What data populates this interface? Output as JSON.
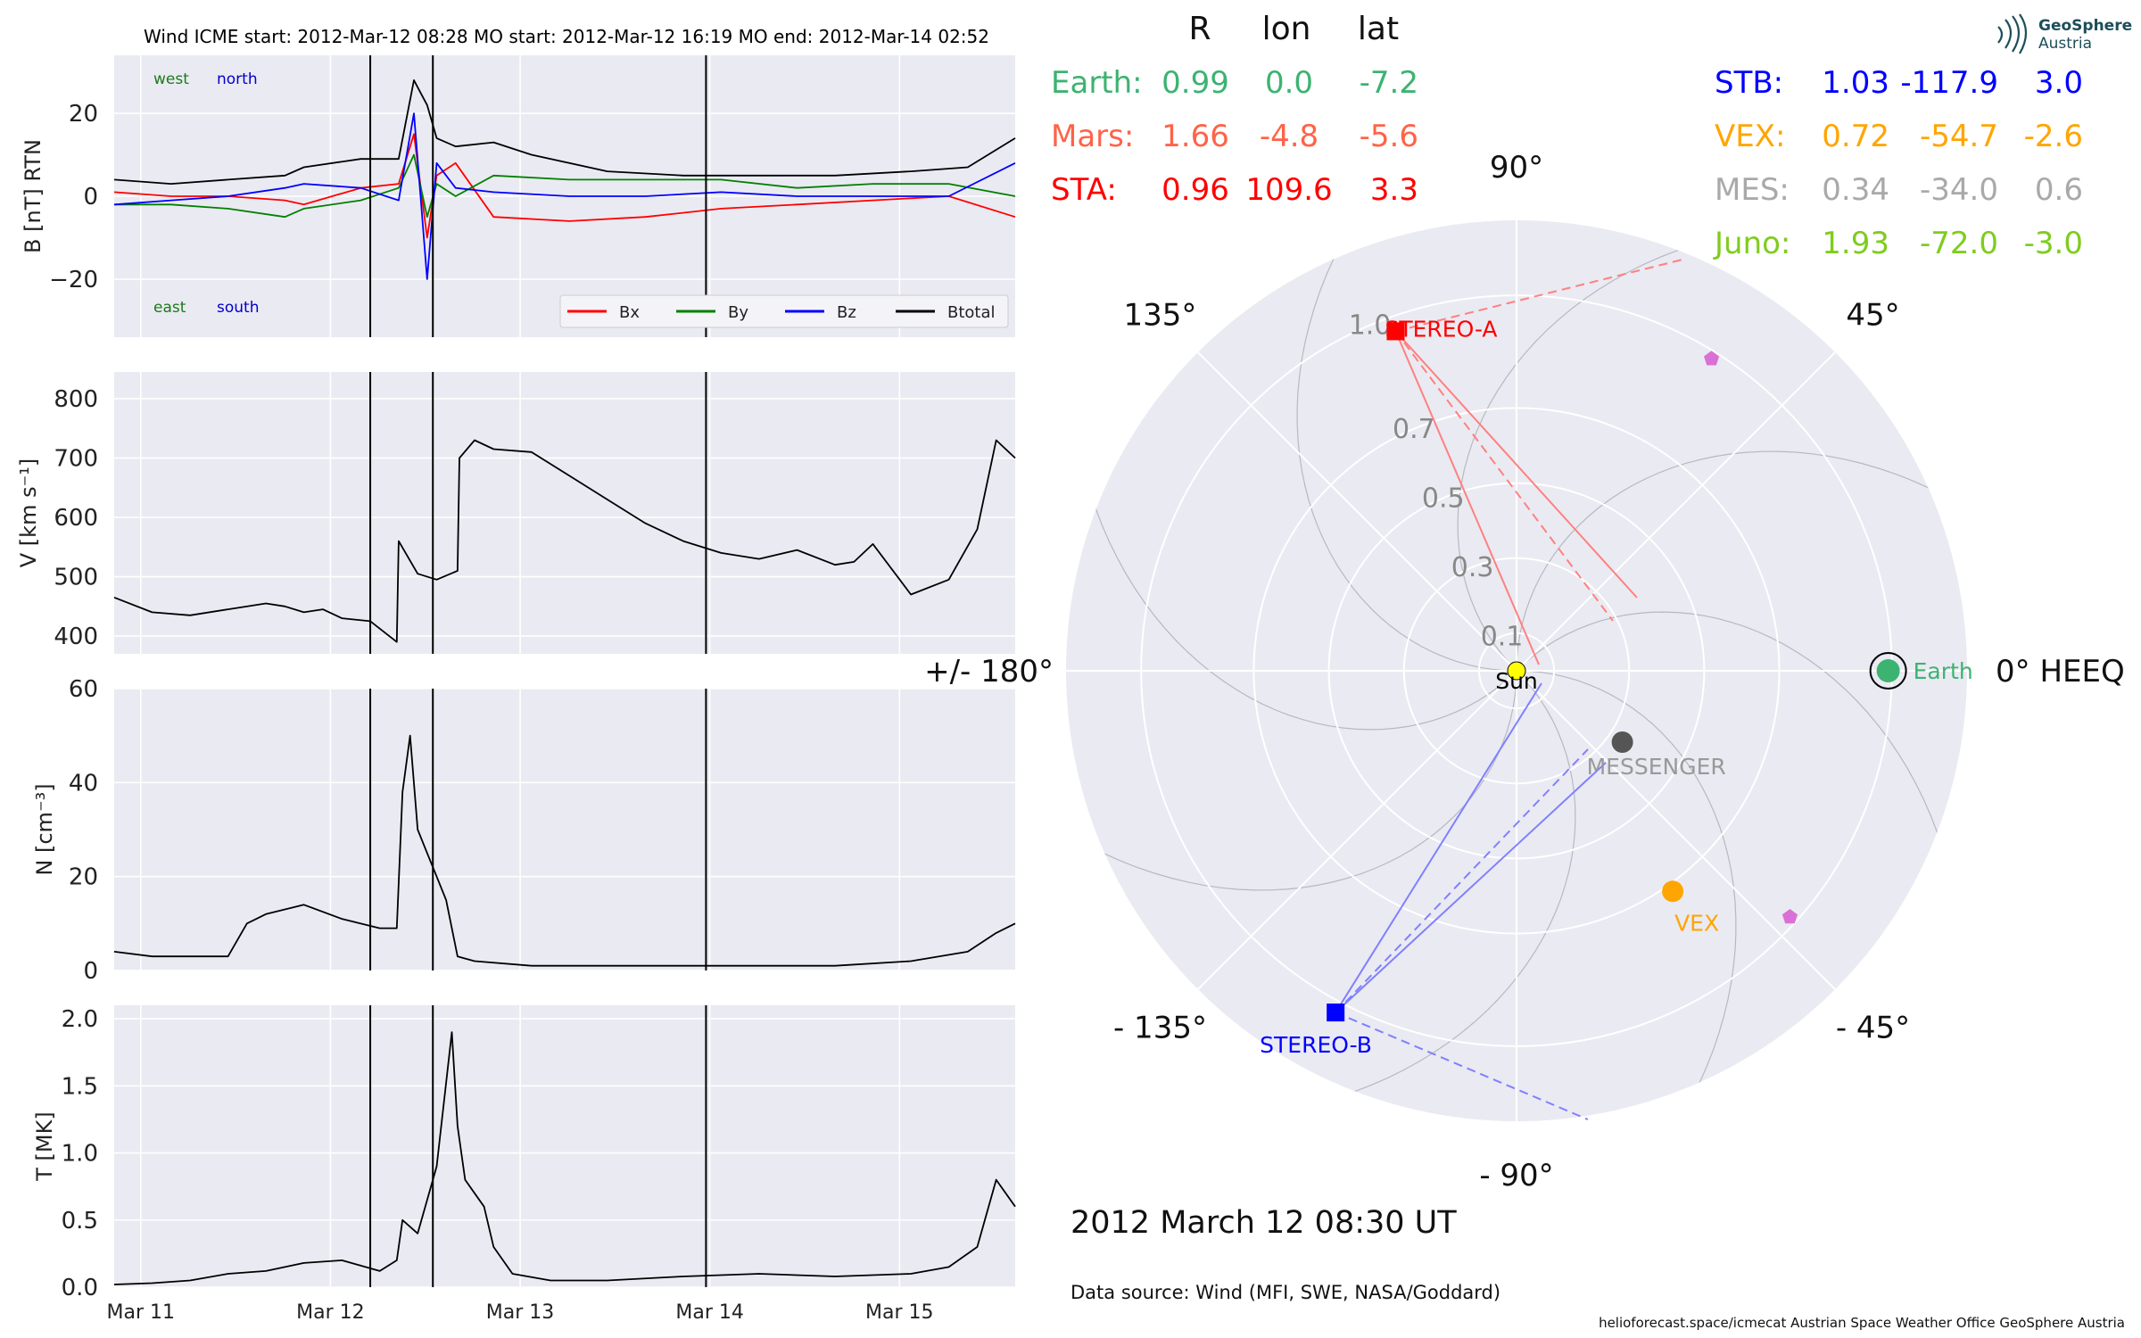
{
  "header": {
    "title": "Wind    ICME start: 2012-Mar-12 08:28   MO start: 2012-Mar-12 16:19   MO end: 2012-Mar-14 02:52"
  },
  "colors": {
    "bx": "#ff0000",
    "by": "#008000",
    "bz": "#0000ff",
    "btotal": "#000000",
    "earth": "#3cb371",
    "mars": "#ff6347",
    "sta": "#ff0000",
    "stb": "#0000ff",
    "vex": "#ffa500",
    "mes": "#a9a9a9",
    "juno": "#7fcc1e",
    "panel_bg": "#eaeaf2"
  },
  "chart_data": [
    {
      "type": "line",
      "ylabel": "B [nT] RTN",
      "ylim": [
        -34,
        34
      ],
      "yticks": [
        20,
        0,
        -20
      ],
      "yticklabels": [
        "20",
        "0",
        "−20"
      ],
      "annotations": [
        "west",
        "north",
        "east",
        "south"
      ],
      "legend": {
        "placement": "lower-right",
        "entries": [
          "Bx",
          "By",
          "Bz",
          "Btotal"
        ]
      },
      "series": [
        {
          "name": "Bx",
          "x": [
            0,
            0.3,
            0.6,
            0.9,
            1.0,
            1.3,
            1.5,
            1.58,
            1.65,
            1.7,
            1.8,
            2.0,
            2.4,
            2.8,
            3.2,
            3.6,
            4.0,
            4.4,
            4.75
          ],
          "y": [
            1,
            0,
            0,
            -1,
            -2,
            2,
            3,
            15,
            -10,
            5,
            8,
            -5,
            -6,
            -5,
            -3,
            -2,
            -1,
            0,
            -5
          ]
        },
        {
          "name": "By",
          "x": [
            0,
            0.3,
            0.6,
            0.9,
            1.0,
            1.3,
            1.5,
            1.58,
            1.65,
            1.7,
            1.8,
            2.0,
            2.4,
            2.8,
            3.2,
            3.6,
            4.0,
            4.4,
            4.75
          ],
          "y": [
            -2,
            -2,
            -3,
            -5,
            -3,
            -1,
            2,
            10,
            -5,
            3,
            0,
            5,
            4,
            4,
            4,
            2,
            3,
            3,
            0
          ]
        },
        {
          "name": "Bz",
          "x": [
            0,
            0.3,
            0.6,
            0.9,
            1.0,
            1.3,
            1.5,
            1.58,
            1.65,
            1.7,
            1.8,
            2.0,
            2.4,
            2.8,
            3.2,
            3.6,
            4.0,
            4.4,
            4.75
          ],
          "y": [
            -2,
            -1,
            0,
            2,
            3,
            2,
            -1,
            20,
            -20,
            8,
            2,
            1,
            0,
            0,
            1,
            0,
            0,
            0,
            8
          ]
        },
        {
          "name": "Btotal",
          "x": [
            0,
            0.3,
            0.6,
            0.9,
            1.0,
            1.3,
            1.5,
            1.58,
            1.65,
            1.7,
            1.8,
            2.0,
            2.2,
            2.6,
            3.0,
            3.4,
            3.8,
            4.2,
            4.5,
            4.75
          ],
          "y": [
            4,
            3,
            4,
            5,
            7,
            9,
            9,
            28,
            22,
            14,
            12,
            13,
            10,
            6,
            5,
            5,
            5,
            6,
            7,
            14
          ]
        }
      ]
    },
    {
      "type": "line",
      "ylabel": "V [km s⁻¹]",
      "ylim": [
        370,
        845
      ],
      "yticks": [
        400,
        500,
        600,
        700,
        800
      ],
      "series": [
        {
          "name": "V",
          "x": [
            0,
            0.2,
            0.4,
            0.6,
            0.8,
            0.9,
            1.0,
            1.1,
            1.2,
            1.35,
            1.49,
            1.5,
            1.6,
            1.7,
            1.81,
            1.82,
            1.9,
            2.0,
            2.2,
            2.4,
            2.6,
            2.8,
            3.0,
            3.2,
            3.4,
            3.6,
            3.8,
            3.9,
            4.0,
            4.2,
            4.4,
            4.55,
            4.65,
            4.75
          ],
          "y": [
            465,
            440,
            435,
            445,
            455,
            450,
            440,
            445,
            430,
            425,
            390,
            560,
            505,
            495,
            510,
            700,
            730,
            715,
            710,
            670,
            630,
            590,
            560,
            540,
            530,
            545,
            520,
            525,
            555,
            470,
            495,
            580,
            730,
            700
          ]
        }
      ]
    },
    {
      "type": "line",
      "ylabel": "N [cm⁻³]",
      "ylim": [
        0,
        60
      ],
      "yticks": [
        0,
        20,
        40,
        60
      ],
      "series": [
        {
          "name": "N",
          "x": [
            0,
            0.2,
            0.4,
            0.6,
            0.7,
            0.8,
            1.0,
            1.2,
            1.4,
            1.49,
            1.52,
            1.56,
            1.6,
            1.65,
            1.7,
            1.75,
            1.81,
            1.9,
            2.2,
            2.6,
            3.0,
            3.4,
            3.8,
            4.2,
            4.5,
            4.65,
            4.75
          ],
          "y": [
            4,
            3,
            3,
            3,
            10,
            12,
            14,
            11,
            9,
            9,
            38,
            50,
            30,
            25,
            20,
            15,
            3,
            2,
            1,
            1,
            1,
            1,
            1,
            2,
            4,
            8,
            10
          ]
        }
      ]
    },
    {
      "type": "line",
      "ylabel": "T [MK]",
      "ylim": [
        0,
        2.1
      ],
      "yticks": [
        0,
        0.5,
        1.0,
        1.5,
        2.0
      ],
      "yticklabels": [
        "0.0",
        "0.5",
        "1.0",
        "1.5",
        "2.0"
      ],
      "xticks": [
        0.14,
        1.14,
        2.14,
        3.14,
        4.14
      ],
      "xticklabels": [
        "Mar 11",
        "Mar 12",
        "Mar 13",
        "Mar 14",
        "Mar 15"
      ],
      "series": [
        {
          "name": "T",
          "x": [
            0,
            0.2,
            0.4,
            0.6,
            0.8,
            1.0,
            1.2,
            1.4,
            1.49,
            1.52,
            1.6,
            1.7,
            1.78,
            1.81,
            1.85,
            1.9,
            1.95,
            2.0,
            2.1,
            2.3,
            2.6,
            3.0,
            3.4,
            3.8,
            4.2,
            4.4,
            4.55,
            4.65,
            4.75
          ],
          "y": [
            0.02,
            0.03,
            0.05,
            0.1,
            0.12,
            0.18,
            0.2,
            0.12,
            0.2,
            0.5,
            0.4,
            0.9,
            1.9,
            1.2,
            0.8,
            0.7,
            0.6,
            0.3,
            0.1,
            0.05,
            0.05,
            0.08,
            0.1,
            0.08,
            0.1,
            0.15,
            0.3,
            0.8,
            0.6
          ]
        }
      ]
    },
    {
      "type": "scatter",
      "subtype": "polar",
      "radial_ticks": [
        "0.1",
        "0.3",
        "0.5",
        "0.7",
        "1.0"
      ],
      "radial_tick_values": [
        0.1,
        0.3,
        0.5,
        0.7,
        1.0
      ],
      "angle_labels": [
        {
          "angle": 0,
          "label": "0° HEEQ"
        },
        {
          "angle": 45,
          "label": "45°"
        },
        {
          "angle": 90,
          "label": "90°"
        },
        {
          "angle": 135,
          "label": "135°"
        },
        {
          "angle": 180,
          "label": "+/- 180°"
        },
        {
          "angle": -135,
          "label": "- 135°"
        },
        {
          "angle": -90,
          "label": "- 90°"
        },
        {
          "angle": -45,
          "label": "- 45°"
        }
      ],
      "bodies": [
        {
          "name": "Sun",
          "r": 0,
          "lon": 0,
          "marker": "circle",
          "color": "#ffff00"
        },
        {
          "name": "Earth",
          "r": 0.99,
          "lon": 0.0,
          "marker": "circle",
          "color": "#3cb371"
        },
        {
          "name": "STEREO-A",
          "r": 0.96,
          "lon": 109.6,
          "marker": "square",
          "color": "#ff0000"
        },
        {
          "name": "STEREO-B",
          "r": 1.03,
          "lon": -117.9,
          "marker": "square",
          "color": "#0000ff"
        },
        {
          "name": "VEX",
          "r": 0.72,
          "lon": -54.7,
          "marker": "circle",
          "color": "#ffa500"
        },
        {
          "name": "MESSENGER",
          "r": 0.34,
          "lon": -34.0,
          "marker": "circle",
          "color": "#555555"
        },
        {
          "name": "",
          "r": 0.98,
          "lon": 58.0,
          "marker": "pentagon",
          "color": "#da70d6"
        },
        {
          "name": "",
          "r": 0.98,
          "lon": -42.0,
          "marker": "pentagon",
          "color": "#da70d6"
        }
      ]
    }
  ],
  "positions_table": {
    "header": [
      "R",
      "lon",
      "lat"
    ],
    "left": [
      {
        "name": "Earth:",
        "r": "0.99",
        "lon": "0.0",
        "lat": "-7.2",
        "color": "#3cb371"
      },
      {
        "name": "Mars:",
        "r": "1.66",
        "lon": "-4.8",
        "lat": "-5.6",
        "color": "#ff6347"
      },
      {
        "name": "STA:",
        "r": "0.96",
        "lon": "109.6",
        "lat": "3.3",
        "color": "#ff0000"
      }
    ],
    "right": [
      {
        "name": "STB:",
        "r": "1.03",
        "lon": "-117.9",
        "lat": "3.0",
        "color": "#0000ff"
      },
      {
        "name": "VEX:",
        "r": "0.72",
        "lon": "-54.7",
        "lat": "-2.6",
        "color": "#ffa500"
      },
      {
        "name": "MES:",
        "r": "0.34",
        "lon": "-34.0",
        "lat": "0.6",
        "color": "#a9a9a9"
      },
      {
        "name": "Juno:",
        "r": "1.93",
        "lon": "-72.0",
        "lat": "-3.0",
        "color": "#7fcc1e"
      }
    ]
  },
  "time_label": "2012 March 12  08:30 UT",
  "data_source": "Data source: Wind (MFI, SWE, NASA/Goddard)",
  "footer": "helioforecast.space/icmecat   Austrian Space Weather Office   GeoSphere Austria",
  "logo": {
    "line1": "GeoSphere",
    "line2": "Austria"
  },
  "event_lines_x": [
    1.35,
    1.68,
    3.12
  ]
}
